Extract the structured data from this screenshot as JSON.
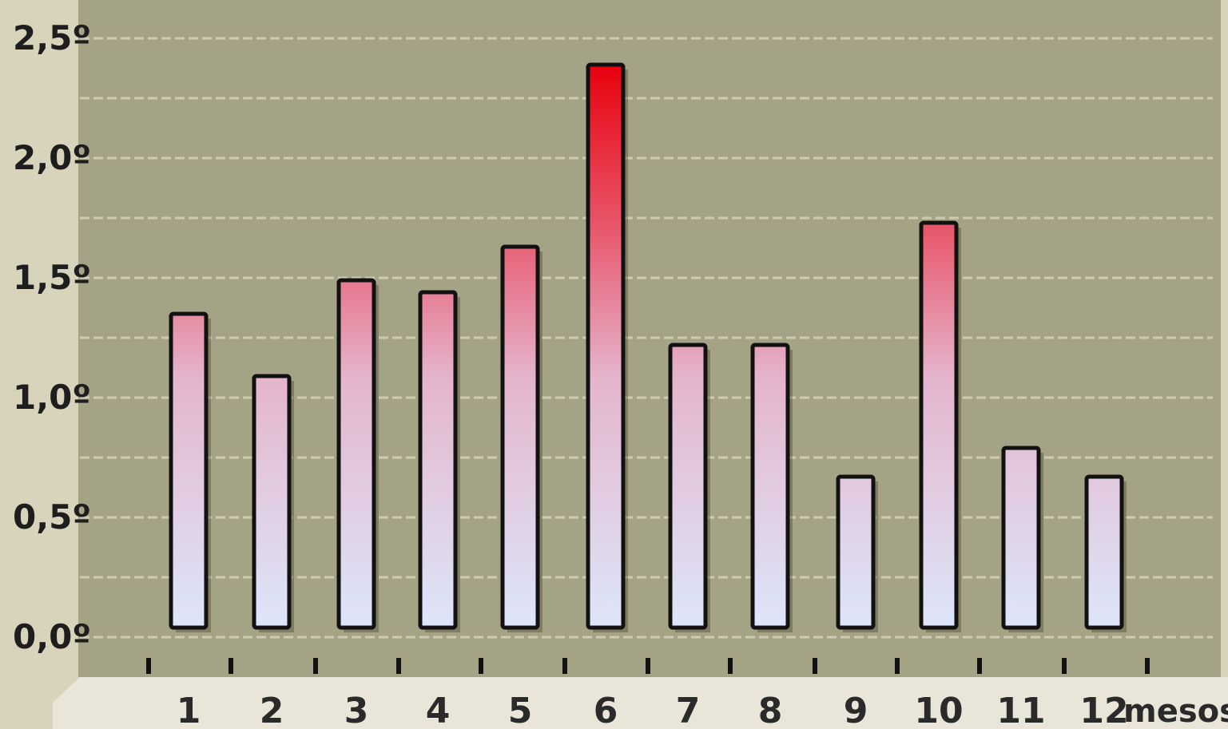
{
  "chart_data": {
    "type": "bar",
    "categories": [
      "1",
      "2",
      "3",
      "4",
      "5",
      "6",
      "7",
      "8",
      "9",
      "10",
      "11",
      "12"
    ],
    "values": [
      1.35,
      1.09,
      1.49,
      1.44,
      1.63,
      2.39,
      1.22,
      1.22,
      0.67,
      1.73,
      0.79,
      0.67
    ],
    "ylim": [
      0,
      2.5
    ],
    "y_ticks": [
      "0,0º",
      "0,5º",
      "1,0º",
      "1,5º",
      "2,0º",
      "2,5º"
    ],
    "y_tick_values": [
      0,
      0.5,
      1.0,
      1.5,
      2.0,
      2.5
    ],
    "xlabel": "mesos",
    "ylabel": "",
    "title": "",
    "grid": true,
    "colors": {
      "plot_background": "#a5a385",
      "outer_background": "#d8d4bc",
      "axis_strip": "#e9e6d9",
      "gridline": "#cfcbb2",
      "bar_top_max": "#e8000c",
      "bar_top_mid": "#e85468",
      "bar_bottom": "#dde8fb",
      "bar_outline": "#111111"
    }
  }
}
